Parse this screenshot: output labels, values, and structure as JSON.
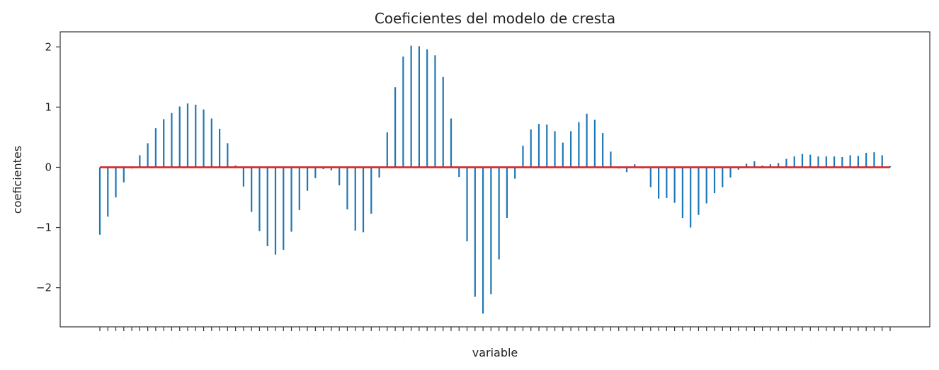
{
  "chart_data": {
    "type": "stem",
    "title": "Coeficientes del modelo de cresta",
    "xlabel": "variable",
    "ylabel": "coeficientes",
    "ylim": [
      -2.65,
      2.25
    ],
    "yticks": [
      2,
      1,
      0,
      -1,
      -2
    ],
    "ytick_labels": [
      "2",
      "1",
      "0",
      "−1",
      "−2"
    ],
    "grid": false,
    "colors": {
      "stem": "#1f77b4",
      "baseline": "#d62728",
      "axes": "#333333"
    },
    "values": [
      -1.12,
      -0.82,
      -0.5,
      -0.25,
      -0.02,
      0.2,
      0.4,
      0.65,
      0.8,
      0.9,
      1.01,
      1.06,
      1.04,
      0.96,
      0.81,
      0.64,
      0.4,
      0.03,
      -0.32,
      -0.74,
      -1.06,
      -1.31,
      -1.45,
      -1.37,
      -1.07,
      -0.71,
      -0.39,
      -0.18,
      -0.03,
      -0.05,
      -0.3,
      -0.7,
      -1.05,
      -1.08,
      -0.77,
      -0.17,
      0.58,
      1.33,
      1.84,
      2.02,
      2.01,
      1.96,
      1.86,
      1.5,
      0.81,
      -0.16,
      -1.23,
      -2.15,
      -2.43,
      -2.11,
      -1.53,
      -0.84,
      -0.19,
      0.36,
      0.63,
      0.72,
      0.71,
      0.6,
      0.41,
      0.6,
      0.75,
      0.89,
      0.79,
      0.57,
      0.26,
      -0.02,
      -0.08,
      0.05,
      -0.02,
      -0.33,
      -0.52,
      -0.51,
      -0.59,
      -0.84,
      -1.0,
      -0.79,
      -0.6,
      -0.43,
      -0.33,
      -0.17,
      -0.04,
      0.06,
      0.1,
      0.03,
      0.05,
      0.07,
      0.14,
      0.18,
      0.22,
      0.21,
      0.18,
      0.18,
      0.18,
      0.17,
      0.2,
      0.19,
      0.24,
      0.25,
      0.2,
      0.02
    ]
  }
}
